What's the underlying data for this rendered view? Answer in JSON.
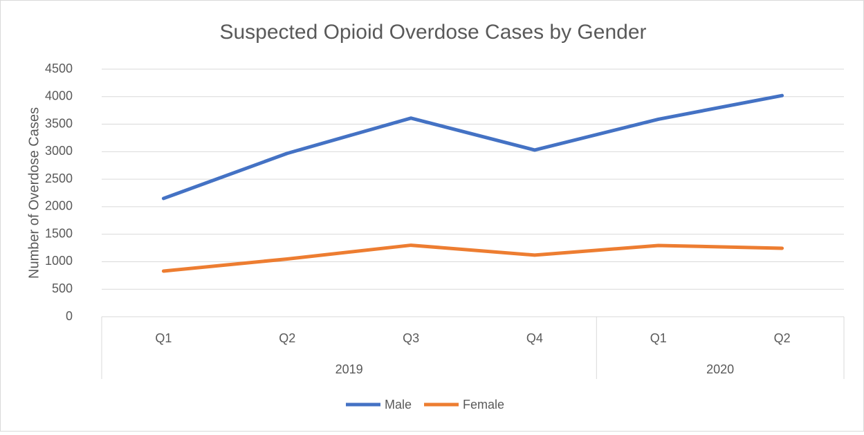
{
  "chart_data": {
    "type": "line",
    "title": "Suspected Opioid Overdose Cases by Gender",
    "y_label": "Number of Overdose Cases",
    "category_groups": [
      {
        "label": "2019",
        "categories": [
          "Q1",
          "Q2",
          "Q3",
          "Q4"
        ]
      },
      {
        "label": "2020",
        "categories": [
          "Q1",
          "Q2"
        ]
      }
    ],
    "series": [
      {
        "name": "Male",
        "color": "#4472c4",
        "values": [
          2150,
          2970,
          3610,
          3030,
          3590,
          4020
        ]
      },
      {
        "name": "Female",
        "color": "#ed7d31",
        "values": [
          830,
          1050,
          1300,
          1120,
          1295,
          1245
        ]
      }
    ],
    "ylim": [
      0,
      4500
    ],
    "yticks": [
      0,
      500,
      1000,
      1500,
      2000,
      2500,
      3000,
      3500,
      4000,
      4500
    ],
    "grid": true,
    "legend": "bottom"
  }
}
